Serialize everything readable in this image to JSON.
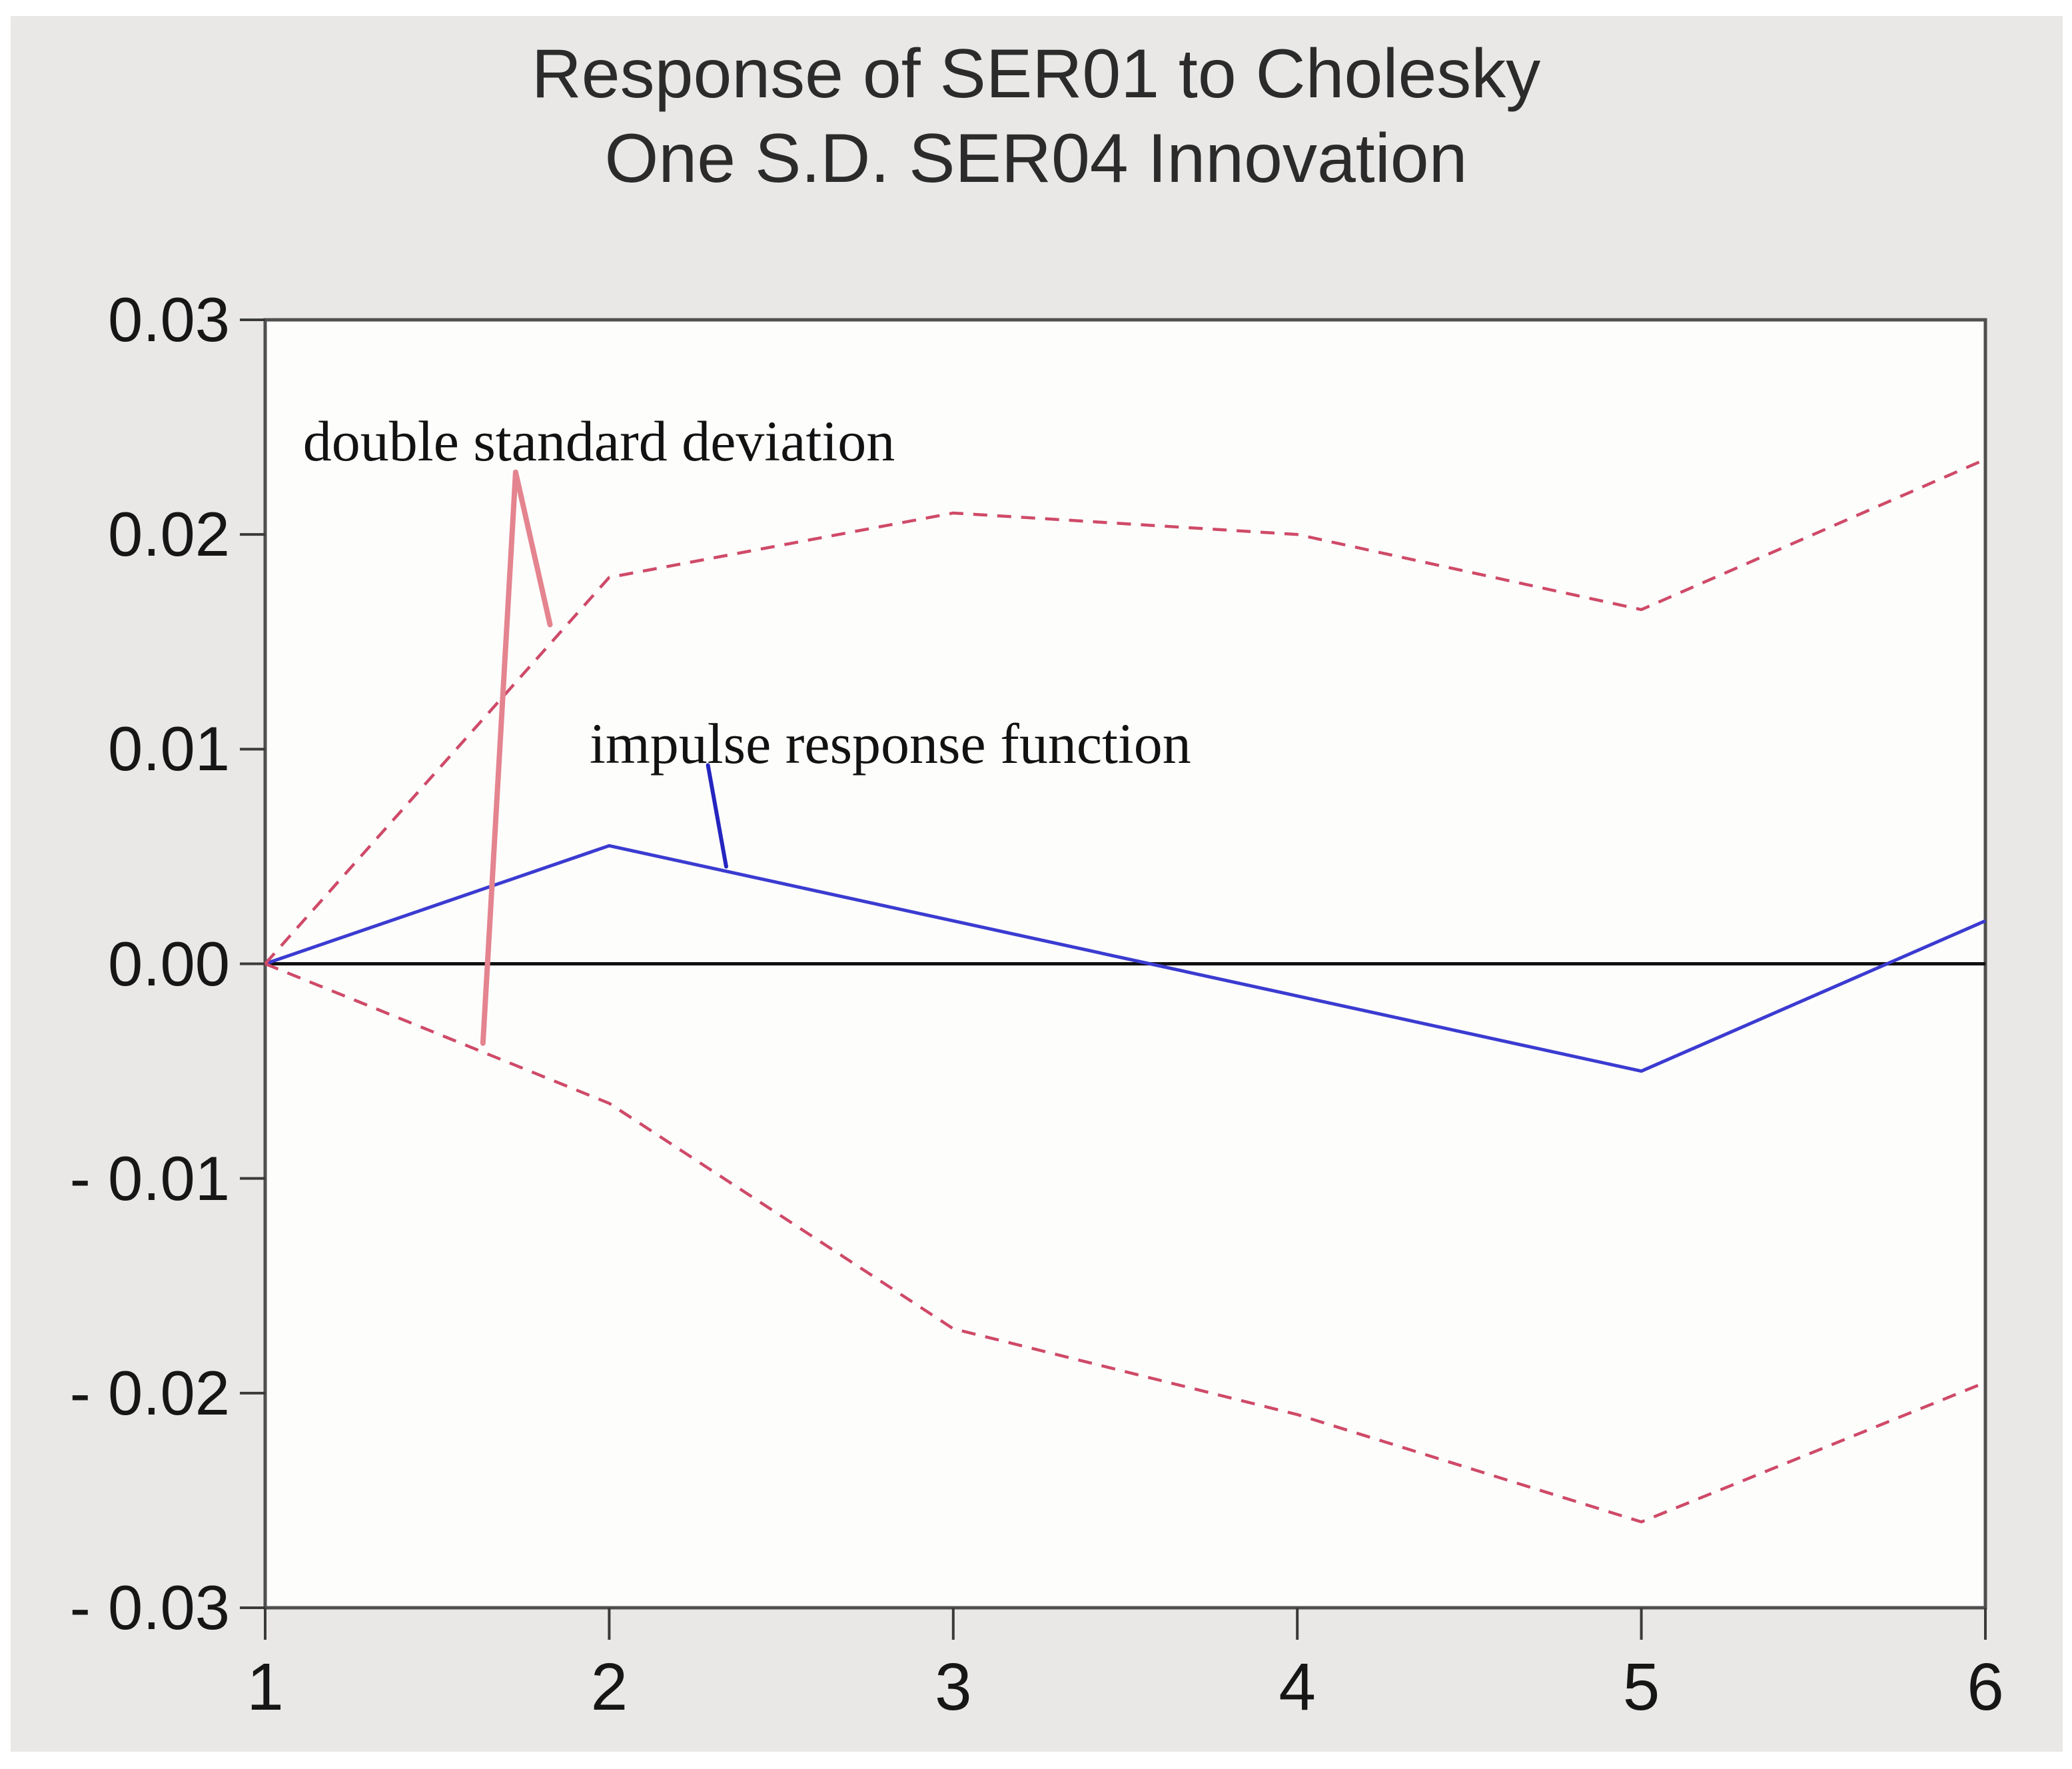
{
  "title": {
    "line1": "Response of SER01 to Cholesky",
    "line2": "One S.D. SER04 Innovation"
  },
  "colors": {
    "impulse_line": "#3b3bd1",
    "band_line": "#cf4a68",
    "band_pointer": "#e4848f",
    "impulse_pointer": "#2525c0",
    "axis_border": "#4f4f4f",
    "tick_mark": "#3a3a3a",
    "zero_line": "#111111",
    "plot_background": "#fdfdfc",
    "panel_background": "#e9e8e6",
    "title_color": "#2b2b2b"
  },
  "chart_data": {
    "type": "line",
    "title": "Response of SER01 to Cholesky One S.D. SER04 Innovation",
    "xlabel": "",
    "ylabel": "",
    "xlim": [
      1,
      6
    ],
    "ylim": [
      -0.03,
      0.03
    ],
    "grid": false,
    "legend_position": "none",
    "zero_line": true,
    "x": [
      1,
      2,
      3,
      4,
      5,
      6
    ],
    "series": [
      {
        "id": "impulse-response-line",
        "name": "impulse response function",
        "style": "solid",
        "color": "#3b3bd1",
        "width": 5,
        "values": [
          0.0,
          0.0055,
          0.002,
          -0.0015,
          -0.005,
          0.002
        ]
      },
      {
        "id": "upper-band-line",
        "name": "upper double standard deviation band",
        "style": "dashed",
        "color": "#cf4a68",
        "width": 4.5,
        "values": [
          0.0,
          0.018,
          0.021,
          0.02,
          0.0165,
          0.0235
        ]
      },
      {
        "id": "lower-band-line",
        "name": "lower double standard deviation band",
        "style": "dashed",
        "color": "#cf4a68",
        "width": 4.5,
        "values": [
          0.0,
          -0.0065,
          -0.017,
          -0.021,
          -0.026,
          -0.0195
        ]
      }
    ],
    "y_ticks": [
      {
        "label": "0.03",
        "value": 0.03
      },
      {
        "label": "0.02",
        "value": 0.02
      },
      {
        "label": "0.01",
        "value": 0.01
      },
      {
        "label": "0.00",
        "value": 0.0
      },
      {
        "label": "- 0.01",
        "value": -0.01
      },
      {
        "label": "- 0.02",
        "value": -0.02
      },
      {
        "label": "- 0.03",
        "value": -0.03
      }
    ],
    "x_ticks": [
      {
        "label": "1",
        "value": 1
      },
      {
        "label": "2",
        "value": 2
      },
      {
        "label": "3",
        "value": 3
      },
      {
        "label": "4",
        "value": 4
      },
      {
        "label": "5",
        "value": 5
      },
      {
        "label": "6",
        "value": 6
      }
    ],
    "annotations": [
      {
        "id": "double-standard-deviation",
        "text": "double standard deviation",
        "text_anchor": {
          "x": 1.11,
          "v": 0.0259
        },
        "pointer_color": "#e4848f",
        "pointer_width": 8,
        "pointer_segments": [
          {
            "x1": 1.728,
            "v1": 0.0229,
            "x2": 1.633,
            "v2": -0.0037
          },
          {
            "x1": 1.728,
            "v1": 0.0229,
            "x2": 1.828,
            "v2": 0.0158
          }
        ]
      },
      {
        "id": "impulse-response-function",
        "text": "impulse response function",
        "text_anchor": {
          "x": 1.943,
          "v": 0.0118
        },
        "pointer_color": "#2525c0",
        "pointer_width": 6,
        "pointer_segments": [
          {
            "x1": 2.287,
            "v1": 0.00925,
            "x2": 2.34,
            "v2": 0.00453
          }
        ]
      }
    ]
  }
}
